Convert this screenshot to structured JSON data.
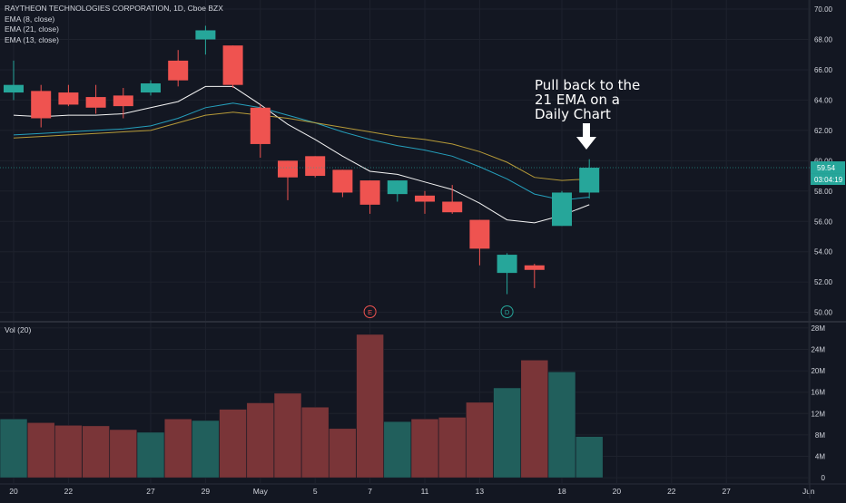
{
  "header": {
    "symbol_title": "RAYTHEON TECHNOLOGIES CORPORATION, 1D, Cboe BZX",
    "indicators": [
      "EMA (8, close)",
      "EMA (21, close)",
      "EMA (13, close)"
    ],
    "volume_label": "Vol (20)"
  },
  "annotation": {
    "lines": [
      "Pull back to the",
      "21 EMA on a",
      "Daily Chart"
    ],
    "arrow_icon": "arrow-down-icon"
  },
  "price_badges": {
    "last_price": "59.54",
    "countdown": "03:04:19",
    "last_color": "#26a69a"
  },
  "event_markers": [
    {
      "label": "E",
      "date": "May 7",
      "color": "#ef5350"
    },
    {
      "label": "D",
      "date": "May 14",
      "color": "#26a69a"
    }
  ],
  "colors": {
    "background": "#131722",
    "grid": "#1e222d",
    "up": "#26a69a",
    "down": "#ef5350",
    "ema8": "#ffffff",
    "ema13": "#26a6c4",
    "ema21": "#c9a93b"
  },
  "chart_data": {
    "type": "candlestick",
    "x_tick_labels": [
      "20",
      "22",
      "27",
      "29",
      "May",
      "5",
      "7",
      "11",
      "13",
      "18",
      "20",
      "22",
      "27",
      "Jun"
    ],
    "price_axis": {
      "ylim": [
        49.5,
        70.6
      ],
      "ticks": [
        "70.00",
        "68.00",
        "66.00",
        "64.00",
        "62.00",
        "60.00",
        "58.00",
        "56.00",
        "54.00",
        "52.00",
        "50.00"
      ]
    },
    "volume_axis": {
      "ylim": [
        -1,
        29
      ],
      "ticks": [
        "28M",
        "24M",
        "20M",
        "16M",
        "12M",
        "8M",
        "4M",
        "0"
      ]
    },
    "candles": [
      {
        "date": "Apr 20",
        "open": 64.5,
        "high": 66.6,
        "low": 64.0,
        "close": 65.0
      },
      {
        "date": "Apr 21",
        "open": 64.6,
        "high": 65.0,
        "low": 62.2,
        "close": 62.8
      },
      {
        "date": "Apr 22",
        "open": 64.5,
        "high": 65.0,
        "low": 63.6,
        "close": 63.7
      },
      {
        "date": "Apr 23",
        "open": 64.2,
        "high": 65.0,
        "low": 63.1,
        "close": 63.5
      },
      {
        "date": "Apr 24",
        "open": 64.3,
        "high": 64.8,
        "low": 62.8,
        "close": 63.6
      },
      {
        "date": "Apr 27",
        "open": 64.5,
        "high": 65.3,
        "low": 64.3,
        "close": 65.1
      },
      {
        "date": "Apr 28",
        "open": 66.6,
        "high": 67.3,
        "low": 64.9,
        "close": 65.3
      },
      {
        "date": "Apr 29",
        "open": 68.0,
        "high": 68.9,
        "low": 67.0,
        "close": 68.6
      },
      {
        "date": "Apr 30",
        "open": 67.6,
        "high": 67.6,
        "low": 64.8,
        "close": 65.0
      },
      {
        "date": "May 1",
        "open": 63.5,
        "high": 63.7,
        "low": 60.2,
        "close": 61.1
      },
      {
        "date": "May 4",
        "open": 60.0,
        "high": 60.0,
        "low": 57.4,
        "close": 58.9
      },
      {
        "date": "May 5",
        "open": 60.3,
        "high": 60.3,
        "low": 58.9,
        "close": 59.0
      },
      {
        "date": "May 6",
        "open": 59.4,
        "high": 59.4,
        "low": 57.6,
        "close": 57.9
      },
      {
        "date": "May 7",
        "open": 58.7,
        "high": 58.7,
        "low": 56.5,
        "close": 57.1
      },
      {
        "date": "May 8",
        "open": 57.8,
        "high": 58.7,
        "low": 57.3,
        "close": 58.7
      },
      {
        "date": "May 11",
        "open": 57.7,
        "high": 58.0,
        "low": 56.5,
        "close": 57.3
      },
      {
        "date": "May 12",
        "open": 57.3,
        "high": 58.4,
        "low": 56.5,
        "close": 56.6
      },
      {
        "date": "May 13",
        "open": 56.1,
        "high": 56.1,
        "low": 53.1,
        "close": 54.2
      },
      {
        "date": "May 14",
        "open": 52.6,
        "high": 53.9,
        "low": 51.2,
        "close": 53.8
      },
      {
        "date": "May 15",
        "open": 53.1,
        "high": 53.2,
        "low": 51.6,
        "close": 52.8
      },
      {
        "date": "May 18",
        "open": 55.7,
        "high": 58.0,
        "low": 55.7,
        "close": 57.9
      },
      {
        "date": "May 19",
        "open": 57.9,
        "high": 60.1,
        "low": 57.5,
        "close": 59.54
      }
    ],
    "volume": [
      11,
      10.3,
      9.8,
      9.7,
      9.0,
      8.5,
      11,
      10.7,
      12.8,
      14,
      15.8,
      13.2,
      9.2,
      26.8,
      10.5,
      11,
      11.3,
      14.1,
      16.8,
      22,
      19.8,
      7.7
    ],
    "series": [
      {
        "name": "EMA (8, close)",
        "values": [
          63.0,
          62.9,
          63.0,
          63.0,
          63.1,
          63.5,
          63.9,
          64.9,
          64.9,
          63.7,
          62.4,
          61.4,
          60.3,
          59.3,
          59.1,
          58.6,
          58.1,
          57.2,
          56.1,
          55.9,
          56.4,
          57.1
        ]
      },
      {
        "name": "EMA (13, close)",
        "values": [
          61.7,
          61.8,
          61.9,
          62.0,
          62.1,
          62.3,
          62.8,
          63.5,
          63.8,
          63.5,
          63.0,
          62.5,
          61.9,
          61.4,
          61.0,
          60.7,
          60.3,
          59.6,
          58.8,
          57.8,
          57.4,
          57.6
        ]
      },
      {
        "name": "EMA (21, close)",
        "values": [
          61.5,
          61.6,
          61.7,
          61.8,
          61.9,
          62.0,
          62.5,
          63.0,
          63.2,
          63.0,
          62.8,
          62.5,
          62.2,
          61.9,
          61.6,
          61.4,
          61.1,
          60.6,
          59.9,
          58.9,
          58.7,
          58.8
        ]
      }
    ]
  }
}
